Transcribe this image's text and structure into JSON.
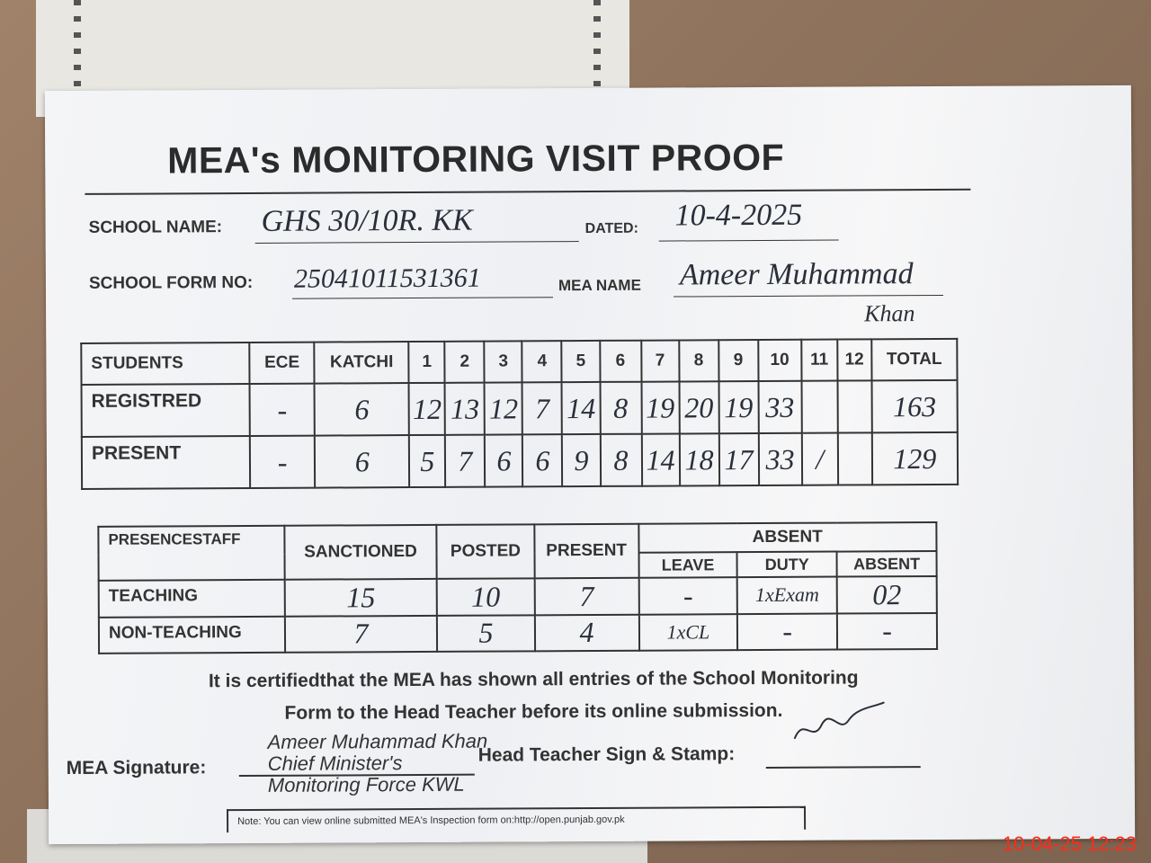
{
  "form": {
    "title": "MEA's MONITORING VISIT PROOF",
    "school_name_label": "SCHOOL NAME:",
    "school_name_value": "GHS 30/10R. KK",
    "dated_label": "DATED:",
    "dated_value": "10-4-2025",
    "form_no_label": "SCHOOL FORM NO:",
    "form_no_value": "25041011531361",
    "mea_name_label": "MEA NAME",
    "mea_name_value": "Ameer Muhammad",
    "mea_name_value2": "Khan"
  },
  "students_table": {
    "headers": [
      "STUDENTS",
      "ECE",
      "KATCHI",
      "1",
      "2",
      "3",
      "4",
      "5",
      "6",
      "7",
      "8",
      "9",
      "10",
      "11",
      "12",
      "TOTAL"
    ],
    "rows": [
      {
        "label": "REGISTRED",
        "values": [
          "-",
          "6",
          "12",
          "13",
          "12",
          "7",
          "14",
          "8",
          "19",
          "20",
          "19",
          "33",
          "",
          "",
          "163"
        ]
      },
      {
        "label": "PRESENT",
        "values": [
          "-",
          "6",
          "5",
          "7",
          "6",
          "6",
          "9",
          "8",
          "14",
          "18",
          "17",
          "33",
          "/",
          "",
          "129"
        ]
      }
    ]
  },
  "staff_table": {
    "headers": {
      "staff": "PRESENCESTAFF",
      "sanctioned": "SANCTIONED",
      "posted": "POSTED",
      "present": "PRESENT",
      "absent_group": "ABSENT",
      "leave": "LEAVE",
      "duty": "DUTY",
      "absent": "ABSENT"
    },
    "rows": [
      {
        "label": "TEACHING",
        "values": [
          "15",
          "10",
          "7",
          "-",
          "1xExam",
          "02"
        ]
      },
      {
        "label": "NON-TEACHING",
        "values": [
          "7",
          "5",
          "4",
          "1xCL",
          "-",
          "-"
        ]
      }
    ]
  },
  "certification": {
    "line1": "It is certifiedthat the MEA has shown all entries of the School Monitoring",
    "line2": "Form to the Head Teacher before its online submission."
  },
  "signatures": {
    "mea_label": "MEA Signature:",
    "stamp_line1": "Ameer Muhammad Khan",
    "stamp_line2": "Chief Minister's",
    "stamp_line3": "Monitoring Force KWL",
    "head_teacher_label": "Head Teacher Sign & Stamp:"
  },
  "note": "Note: You can view online submitted MEA's Inspection form on:http://open.punjab.gov.pk",
  "timestamp": "10-04-25  12:23"
}
